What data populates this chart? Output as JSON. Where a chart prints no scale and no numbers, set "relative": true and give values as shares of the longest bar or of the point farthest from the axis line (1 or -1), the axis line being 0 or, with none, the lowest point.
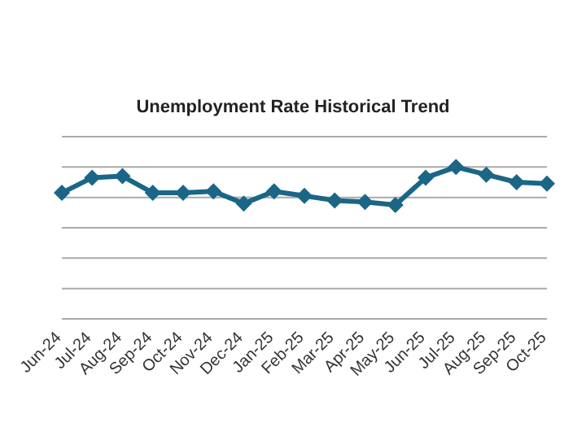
{
  "chart_data": {
    "type": "line",
    "title": "Unemployment Rate Historical Trend",
    "relative": true,
    "categories": [
      "Jun-24",
      "Jul-24",
      "Aug-24",
      "Sep-24",
      "Oct-24",
      "Nov-24",
      "Dec-24",
      "Jan-25",
      "Feb-25",
      "Mar-25",
      "Apr-25",
      "May-25",
      "Jun-25",
      "Jul-25",
      "Aug-25",
      "Sep-25",
      "Oct-25"
    ],
    "series": [
      {
        "color": "#1b6687",
        "values": [
          0.83,
          0.93,
          0.94,
          0.83,
          0.83,
          0.84,
          0.76,
          0.84,
          0.81,
          0.78,
          0.77,
          0.75,
          0.93,
          1,
          0.95,
          0.9,
          0.89
        ]
      }
    ],
    "grid": "y",
    "marker": "diamond",
    "line_style": "solid"
  }
}
